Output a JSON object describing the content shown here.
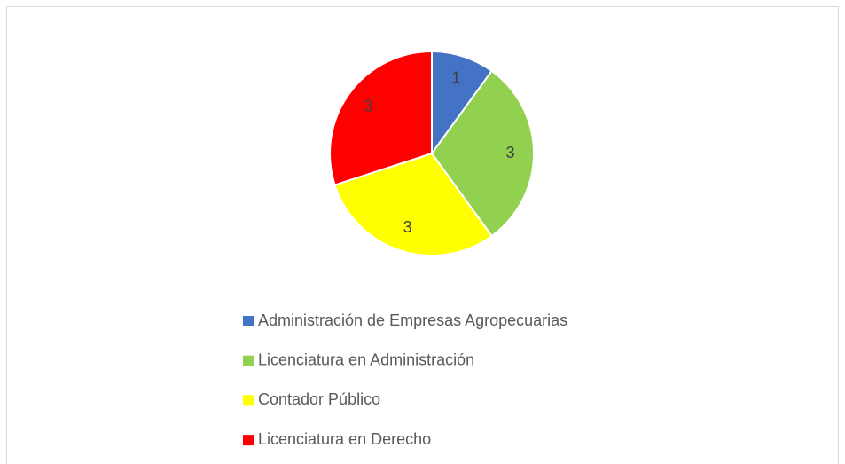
{
  "chart_data": {
    "type": "pie",
    "categories": [
      "Administración de Empresas Agropecuarias",
      "Licenciatura en Administración",
      "Contador Público",
      "Licenciatura en Derecho"
    ],
    "values": [
      1,
      3,
      3,
      3
    ],
    "colors": [
      "#4472c4",
      "#92d050",
      "#ffff00",
      "#ff0000"
    ],
    "legend": "bottom"
  }
}
